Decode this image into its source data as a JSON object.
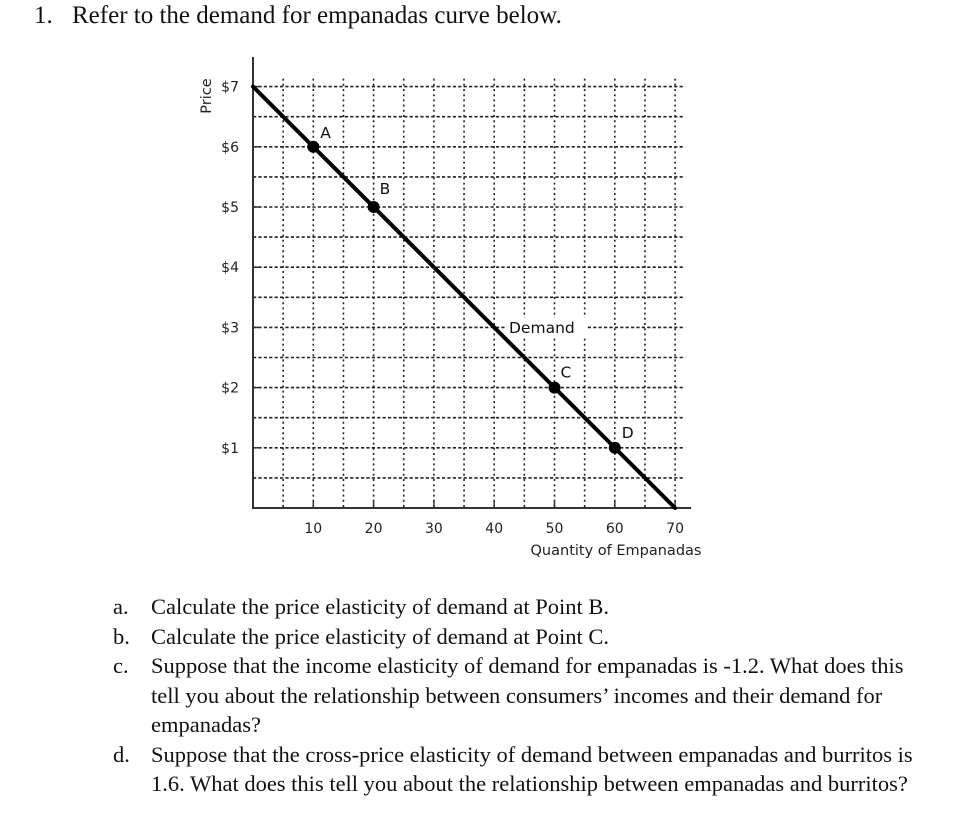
{
  "question": {
    "number": "1.",
    "text": "Refer to the demand for empanadas curve below."
  },
  "chart_data": {
    "type": "line",
    "title": "",
    "xlabel": "Quantity of Empanadas",
    "ylabel": "Price",
    "xlim": [
      0,
      70
    ],
    "ylim": [
      0,
      7
    ],
    "x_ticks": [
      10,
      20,
      30,
      40,
      50,
      60,
      70
    ],
    "x_tick_labels": [
      "10",
      "20",
      "30",
      "40",
      "50",
      "60",
      "70"
    ],
    "y_ticks": [
      1,
      2,
      3,
      4,
      5,
      6,
      7
    ],
    "y_tick_labels": [
      "$1",
      "$2",
      "$3",
      "$4",
      "$5",
      "$6",
      "$7"
    ],
    "grid": true,
    "grid_style": "dotted",
    "grid_step_x": 5,
    "grid_step_y": 0.5,
    "series": [
      {
        "name": "Demand",
        "x": [
          0,
          70
        ],
        "y": [
          7,
          0
        ],
        "color": "#000000"
      }
    ],
    "points": [
      {
        "label": "A",
        "x": 10,
        "y": 6
      },
      {
        "label": "B",
        "x": 20,
        "y": 5
      },
      {
        "label": "C",
        "x": 50,
        "y": 2
      },
      {
        "label": "D",
        "x": 60,
        "y": 1
      }
    ],
    "annotations": [
      {
        "text": "Demand",
        "x": 43,
        "y": 3
      }
    ]
  },
  "subquestions": [
    {
      "label": "a.",
      "text": "Calculate the price elasticity of demand at Point B."
    },
    {
      "label": "b.",
      "text": "Calculate the price elasticity of demand at Point C."
    },
    {
      "label": "c.",
      "text": "Suppose that the income elasticity of demand for empanadas is -1.2. What does this tell you about the relationship between consumers’ incomes and their demand for empanadas?"
    },
    {
      "label": "d.",
      "text": "Suppose that the cross-price elasticity of demand between empanadas and burritos is 1.6. What does this tell you about the relationship between empanadas and burritos?"
    }
  ]
}
